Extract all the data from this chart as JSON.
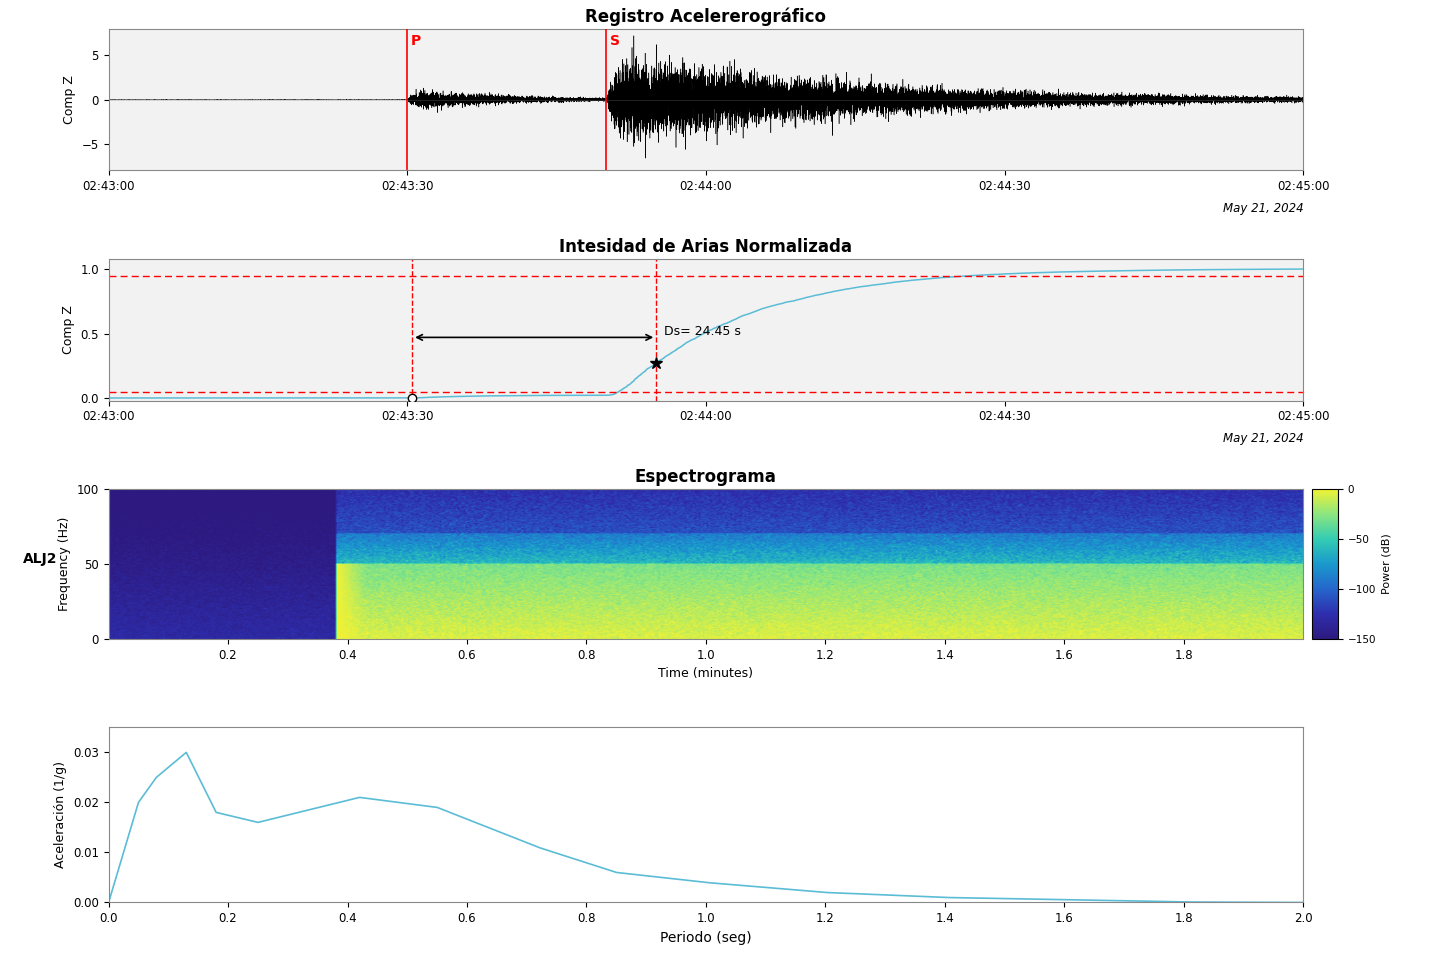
{
  "title1": "Registro Acelererográfico",
  "title2": "Intesidad de Arias Normalizada",
  "title3": "Espectrograma",
  "ylabel1": "Comp Z",
  "ylabel2": "Comp Z",
  "ylabel3": "Frequency (Hz)",
  "ylabel4": "Aceleración (1/g)",
  "xlabel3": "Time (minutes)",
  "xlabel4": "Periodo (seg)",
  "station": "ALJ2",
  "date": "May 21, 2024",
  "P_label": "P",
  "S_label": "S",
  "Ds_label": "Ds= 24.45 s",
  "time_ticks": [
    "02:43:00",
    "02:43:30",
    "02:44:00",
    "02:44:30",
    "02:45:00"
  ],
  "time_tick_vals": [
    0,
    30,
    60,
    90,
    120
  ],
  "p_time": 30.0,
  "s_time": 50.0,
  "ds_start": 30.5,
  "ds_end": 55.0,
  "ylim1": [
    -8,
    8
  ],
  "xlim_time": [
    0,
    120
  ],
  "colorbar_ticks": [
    0,
    -50,
    -100,
    -150
  ],
  "colorbar_label": "Power (dB)",
  "spec_time_ticks": [
    0.2,
    0.4,
    0.6,
    0.8,
    1.0,
    1.2,
    1.4,
    1.6,
    1.8
  ],
  "periodo_ticks": [
    0,
    0.2,
    0.4,
    0.6,
    0.8,
    1.0,
    1.2,
    1.4,
    1.6,
    1.8,
    2.0
  ],
  "panel_bg": "#f2f2f2",
  "line_color": "#000000",
  "arias_line_color": "#5bbcd6",
  "red_color": "#ff0000"
}
